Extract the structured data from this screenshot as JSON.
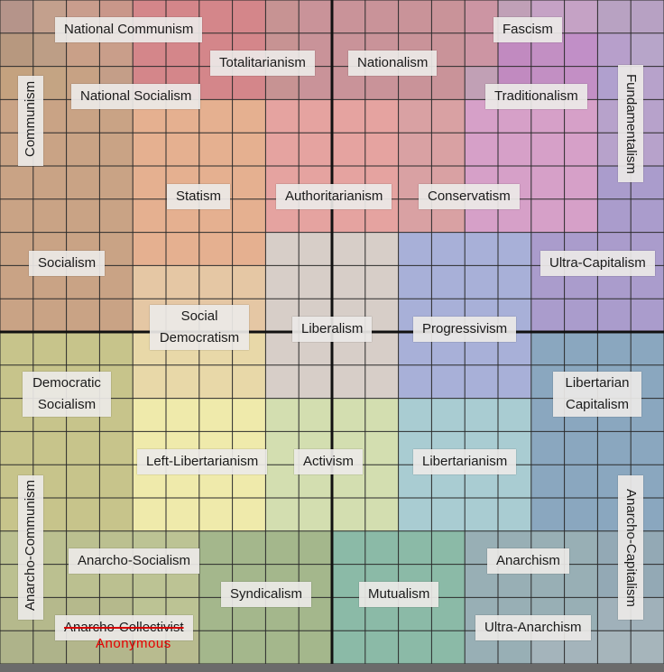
{
  "grid": {
    "rows": [
      [
        "#b5948a",
        "#c3a08d",
        "#c99d8d",
        "#c9978a",
        "#d4868a",
        "#d4868a",
        "#d4868a",
        "#d4868a",
        "#c79393",
        "#c99399",
        "#c99399",
        "#c99399",
        "#c99399",
        "#c99399",
        "#cc95a3",
        "#c0a0b7",
        "#c5a2c5",
        "#c5a2c5",
        "#b8a2c2",
        "#b7a1c3"
      ],
      [
        "#b7987f",
        "#bd9e86",
        "#c9a088",
        "#c99e8a",
        "#d4868a",
        "#d4868a",
        "#d4868a",
        "#d4868a",
        "#c79393",
        "#c99399",
        "#c99399",
        "#c99399",
        "#c99399",
        "#c99399",
        "#cc95a3",
        "#c18ac0",
        "#c28fc3",
        "#c18fc7",
        "#b79fcb",
        "#b7a5c9"
      ],
      [
        "#c4a27f",
        "#c4a483",
        "#c7a284",
        "#c49e88",
        "#d4868a",
        "#d4868a",
        "#d4868a",
        "#d4868a",
        "#c79393",
        "#c99399",
        "#c99399",
        "#c99399",
        "#c99399",
        "#c99399",
        "#c1a0b5",
        "#c18ac0",
        "#c28fc3",
        "#c38fc5",
        "#b0a0ce",
        "#b7a2cb"
      ],
      [
        "#c9a385",
        "#c9a385",
        "#c9a385",
        "#c9a385",
        "#e5b090",
        "#e5b090",
        "#e5b090",
        "#e5b090",
        "#e5a3a0",
        "#e5a3a0",
        "#e5a3a0",
        "#e5a3a0",
        "#d9a1a3",
        "#d9a1a3",
        "#d6a0c8",
        "#d6a0c8",
        "#d6a0c8",
        "#d6a0c8",
        "#b7a2cb",
        "#b7a2cb"
      ],
      [
        "#c9a385",
        "#c9a385",
        "#c9a385",
        "#c9a385",
        "#e5b090",
        "#e5b090",
        "#e5b090",
        "#e5b090",
        "#e5a3a0",
        "#e5a3a0",
        "#e5a3a0",
        "#e5a3a0",
        "#d9a1a3",
        "#d9a1a3",
        "#d6a0c8",
        "#d6a0c8",
        "#d6a0c8",
        "#d6a0c8",
        "#b7a2cb",
        "#b7a2cb"
      ],
      [
        "#c9a385",
        "#c9a385",
        "#c9a385",
        "#c9a385",
        "#e5b090",
        "#e5b090",
        "#e5b090",
        "#e5b090",
        "#e5a3a0",
        "#e5a3a0",
        "#e5a3a0",
        "#e5a3a0",
        "#d9a1a3",
        "#d9a1a3",
        "#d6a0c8",
        "#d6a0c8",
        "#d6a0c8",
        "#d6a0c8",
        "#aa9ccc",
        "#aa9ccc"
      ],
      [
        "#c9a385",
        "#c9a385",
        "#c9a385",
        "#c9a385",
        "#e5b090",
        "#e5b090",
        "#e5b090",
        "#e5b090",
        "#e5a3a0",
        "#e5a3a0",
        "#e5a3a0",
        "#e5a3a0",
        "#d9a1a3",
        "#d9a1a3",
        "#d6a0c8",
        "#d6a0c8",
        "#d6a0c8",
        "#d6a0c8",
        "#aa9ccc",
        "#aa9ccc"
      ],
      [
        "#c9a385",
        "#c9a385",
        "#c9a385",
        "#c9a385",
        "#e5b090",
        "#e5b090",
        "#e5b090",
        "#e5b090",
        "#d7cec8",
        "#d7cec8",
        "#d7cec8",
        "#d7cec8",
        "#a8b0d8",
        "#a8b0d8",
        "#a8b0d8",
        "#a8b0d8",
        "#aa9ccc",
        "#aa9ccc",
        "#aa9ccc",
        "#aa9ccc"
      ],
      [
        "#c9a385",
        "#c9a385",
        "#c9a385",
        "#c9a385",
        "#e5c7a4",
        "#e5c7a4",
        "#e5c7a4",
        "#e5c7a4",
        "#d7cec8",
        "#d7cec8",
        "#d7cec8",
        "#d7cec8",
        "#a8b0d8",
        "#a8b0d8",
        "#a8b0d8",
        "#a8b0d8",
        "#aa9ccc",
        "#aa9ccc",
        "#aa9ccc",
        "#aa9ccc"
      ],
      [
        "#c9a385",
        "#c9a385",
        "#c9a385",
        "#c9a385",
        "#e5c7a4",
        "#e5c7a4",
        "#e5c7a4",
        "#e5c7a4",
        "#d7cec8",
        "#d7cec8",
        "#d7cec8",
        "#d7cec8",
        "#a8b0d8",
        "#a8b0d8",
        "#a8b0d8",
        "#a8b0d8",
        "#aa9ccc",
        "#aa9ccc",
        "#aa9ccc",
        "#aa9ccc"
      ],
      [
        "#c7c48b",
        "#c7c48b",
        "#c7c48b",
        "#c7c48b",
        "#e8d8a8",
        "#e8d8a8",
        "#e8d8a8",
        "#e8d8a8",
        "#d7cec8",
        "#d7cec8",
        "#d7cec8",
        "#d7cec8",
        "#a8b0d8",
        "#a8b0d8",
        "#a8b0d8",
        "#a8b0d8",
        "#8aa7bf",
        "#8aa7bf",
        "#8aa7bf",
        "#8aa7bf"
      ],
      [
        "#c7c48b",
        "#c7c48b",
        "#c7c48b",
        "#c7c48b",
        "#e8d8a8",
        "#e8d8a8",
        "#e8d8a8",
        "#e8d8a8",
        "#d7cec8",
        "#d7cec8",
        "#d7cec8",
        "#d7cec8",
        "#a8b0d8",
        "#a8b0d8",
        "#a8b0d8",
        "#a8b0d8",
        "#8aa7bf",
        "#8aa7bf",
        "#8aa7bf",
        "#8aa7bf"
      ],
      [
        "#c7c48b",
        "#c7c48b",
        "#c7c48b",
        "#c7c48b",
        "#efeaab",
        "#efeaab",
        "#efeaab",
        "#efeaab",
        "#d3deb0",
        "#d3deb0",
        "#d3deb0",
        "#d3deb0",
        "#a9ccd2",
        "#a9ccd2",
        "#a9ccd2",
        "#a9ccd2",
        "#8aa7bf",
        "#8aa7bf",
        "#8aa7bf",
        "#8aa7bf"
      ],
      [
        "#c7c48b",
        "#c7c48b",
        "#c7c48b",
        "#c7c48b",
        "#efeaab",
        "#efeaab",
        "#efeaab",
        "#efeaab",
        "#d3deb0",
        "#d3deb0",
        "#d3deb0",
        "#d3deb0",
        "#a9ccd2",
        "#a9ccd2",
        "#a9ccd2",
        "#a9ccd2",
        "#8aa7bf",
        "#8aa7bf",
        "#8aa7bf",
        "#8aa7bf"
      ],
      [
        "#c7c48b",
        "#c7c48b",
        "#c7c48b",
        "#c7c48b",
        "#efeaab",
        "#efeaab",
        "#efeaab",
        "#efeaab",
        "#d3deb0",
        "#d3deb0",
        "#d3deb0",
        "#d3deb0",
        "#a9ccd2",
        "#a9ccd2",
        "#a9ccd2",
        "#a9ccd2",
        "#8aa7bf",
        "#8aa7bf",
        "#8aa7bf",
        "#8aa7bf"
      ],
      [
        "#c7c48b",
        "#c7c48b",
        "#c7c48b",
        "#c7c48b",
        "#efeaab",
        "#efeaab",
        "#efeaab",
        "#efeaab",
        "#d3deb0",
        "#d3deb0",
        "#d3deb0",
        "#d3deb0",
        "#a9ccd2",
        "#a9ccd2",
        "#a9ccd2",
        "#a9ccd2",
        "#8aa7bf",
        "#8aa7bf",
        "#8aa7bf",
        "#8aa7bf"
      ],
      [
        "#bbc090",
        "#bbc090",
        "#bbc090",
        "#bbc090",
        "#bcc394",
        "#bcc394",
        "#a4b78c",
        "#a4b78c",
        "#a4b78c",
        "#a4b78c",
        "#8bbaa7",
        "#8bbaa7",
        "#8bbaa7",
        "#8bbaa7",
        "#98afb5",
        "#98afb5",
        "#98afb5",
        "#98afb5",
        "#93a9b5",
        "#93a9b5"
      ],
      [
        "#bbc090",
        "#bbc090",
        "#bbc090",
        "#bbc090",
        "#bcc394",
        "#bcc394",
        "#a4b78c",
        "#a4b78c",
        "#a4b78c",
        "#a4b78c",
        "#8bbaa7",
        "#8bbaa7",
        "#8bbaa7",
        "#8bbaa7",
        "#98afb5",
        "#98afb5",
        "#98afb5",
        "#98afb5",
        "#93a9b5",
        "#93a9b5"
      ],
      [
        "#b5b98c",
        "#b5b98c",
        "#b5b98c",
        "#b5b98c",
        "#bcc394",
        "#bcc394",
        "#a4b78c",
        "#a4b78c",
        "#a4b78c",
        "#a4b78c",
        "#8bbaa7",
        "#8bbaa7",
        "#8bbaa7",
        "#8bbaa7",
        "#98afb5",
        "#98afb5",
        "#98afb5",
        "#98afb5",
        "#a0b1ba",
        "#a0b1ba"
      ],
      [
        "#aeb38a",
        "#aeb38a",
        "#b3b68c",
        "#b3b68c",
        "#b8bb8f",
        "#b8bb8f",
        "#a4b78c",
        "#a4b78c",
        "#a4b78c",
        "#a4b78c",
        "#8bbaa7",
        "#8bbaa7",
        "#8bbaa7",
        "#8bbaa7",
        "#98afb5",
        "#98afb5",
        "#a4b4bb",
        "#a4b4bb",
        "#a6b5bb",
        "#a6b5bb"
      ]
    ]
  },
  "labels": {
    "national_communism": "National Communism",
    "totalitarianism": "Totalitarianism",
    "nationalism": "Nationalism",
    "fascism": "Fascism",
    "communism": "Communism",
    "national_socialism": "National Socialism",
    "traditionalism": "Traditionalism",
    "fundamentalism": "Fundamentalism",
    "statism": "Statism",
    "authoritarianism": "Authoritarianism",
    "conservatism": "Conservatism",
    "socialism": "Socialism",
    "ultra_capitalism": "Ultra-Capitalism",
    "social_democratism": "Social Democratism",
    "liberalism": "Liberalism",
    "progressivism": "Progressivism",
    "democratic_socialism": "Democratic Socialism",
    "libertarian_capitalism": "Libertarian Capitalism",
    "left_libertarianism": "Left-Libertarianism",
    "activism": "Activism",
    "libertarianism": "Libertarianism",
    "anarcho_communism": "Anarcho-Communism",
    "anarcho_capitalism": "Anarcho-Capitalism",
    "anarcho_socialism": "Anarcho-Socialism",
    "anarchism": "Anarchism",
    "syndicalism": "Syndicalism",
    "mutualism": "Mutualism",
    "anarcho_collectivist": "Anarcho-Collectivist",
    "ultra_anarchism": "Ultra-Anarchism"
  },
  "signature": "Anonymous",
  "colors": {
    "grid_line": "#2b2b2b",
    "axis_line": "#111111",
    "strike": "#d60000",
    "signature": "#e60000"
  }
}
